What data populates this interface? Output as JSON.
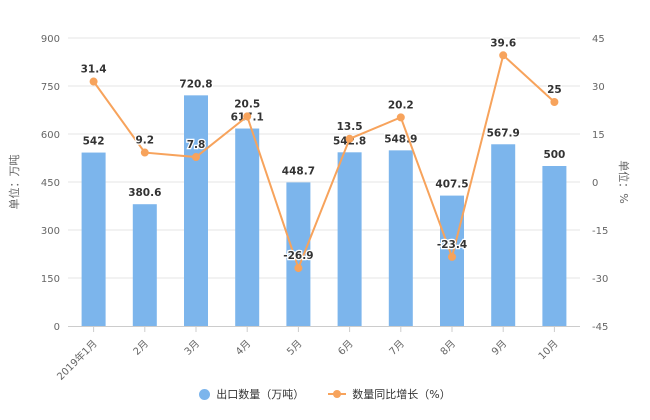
{
  "chart_data": {
    "type": "bar+line",
    "title": "",
    "categories": [
      "2019年1月",
      "2月",
      "3月",
      "4月",
      "5月",
      "6月",
      "7月",
      "8月",
      "9月",
      "10月"
    ],
    "series": [
      {
        "name": "出口数量（万吨）",
        "type": "bar",
        "axis": "left",
        "color": "#7cb5ec",
        "values": [
          542,
          380.6,
          720.8,
          617.1,
          448.7,
          542.8,
          548.9,
          407.5,
          567.9,
          500
        ]
      },
      {
        "name": "数量同比增长（%）",
        "type": "line",
        "axis": "right",
        "color": "#f7a35c",
        "values": [
          31.4,
          9.2,
          7.8,
          20.5,
          -26.9,
          13.5,
          20.2,
          -23.4,
          39.6,
          25
        ]
      }
    ],
    "ylabel": "单位：万吨",
    "y2label": "单位：%",
    "ylim": [
      0,
      900
    ],
    "yticks": [
      0,
      150,
      300,
      450,
      600,
      750,
      900
    ],
    "y2lim": [
      -45,
      45
    ],
    "y2ticks": [
      -45,
      -30,
      -15,
      0,
      15,
      30,
      45
    ],
    "grid": true,
    "legend_position": "bottom"
  },
  "legend": {
    "bar_label": "出口数量（万吨）",
    "line_label": "数量同比增长（%）"
  },
  "colors": {
    "bar": "#7cb5ec",
    "line": "#f7a35c",
    "grid": "#e6e6e6",
    "axis_text": "#666666",
    "label_text": "#333333"
  }
}
